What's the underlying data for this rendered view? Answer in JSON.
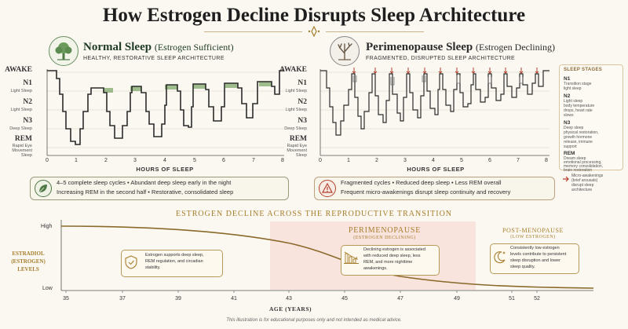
{
  "title": "How Estrogen Decline Disrupts Sleep Architecture",
  "normal": {
    "title": "Normal Sleep",
    "subtitle": "(Estrogen Sufficient)",
    "tagline": "HEALTHY, RESTORATIVE SLEEP ARCHITECTURE",
    "icon": "tree-icon",
    "summary_line1": "4–5 complete sleep cycles  •  Abundant deep sleep early in the night",
    "summary_line2": "Increasing REM in the second half  •  Restorative, consolidated sleep",
    "summary_icon": "leaf-icon"
  },
  "peri": {
    "title": "Perimenopause Sleep",
    "subtitle": "(Estrogen Declining)",
    "tagline": "FRAGMENTED, DISRUPTED SLEEP ARCHITECTURE",
    "icon": "bare-tree-icon",
    "summary_line1": "Fragmented cycles  •  Reduced deep sleep  •  Less REM overall",
    "summary_line2": "Frequent micro-awakenings disrupt sleep continuity and recovery",
    "summary_icon": "warning-icon"
  },
  "stages": {
    "awake": "AWAKE",
    "n1": "N1",
    "n1_sub": "Light Sleep",
    "n2": "N2",
    "n2_sub": "Light Sleep",
    "n3": "N3",
    "n3_sub": "Deep Sleep",
    "rem": "REM",
    "rem_sub1": "Rapid Eye",
    "rem_sub2": "Movement Sleep"
  },
  "hours_axis": {
    "label": "HOURS OF SLEEP",
    "ticks": [
      "0",
      "1",
      "2",
      "3",
      "4",
      "5",
      "6",
      "7",
      "8"
    ]
  },
  "legend": {
    "heading": "SLEEP STAGES",
    "items": [
      {
        "name": "N1",
        "desc": [
          "Transition stage",
          "light sleep"
        ]
      },
      {
        "name": "N2",
        "desc": [
          "Light sleep",
          "body temperature",
          "drops, heart rate",
          "slows"
        ]
      },
      {
        "name": "N3",
        "desc": [
          "Deep sleep",
          "physical restoration,",
          "growth hormone",
          "release, immune",
          "support"
        ]
      },
      {
        "name": "REM",
        "desc": [
          "Dream sleep",
          "emotional processing,",
          "memory consolidation,",
          "brain restoration"
        ]
      }
    ],
    "micro": [
      "Micro-awakenings",
      "(brief arousals)",
      "disrupt sleep",
      "architecture"
    ]
  },
  "transition": {
    "heading": "ESTROGEN DECLINE ACROSS THE REPRODUCTIVE TRANSITION",
    "ylabel1": "ESTRADIOL",
    "ylabel2": "(ESTROGEN)",
    "ylabel3": "LEVELS",
    "high": "High",
    "low": "Low",
    "xlabel": "AGE (YEARS)",
    "x_ticks": [
      "35",
      "37",
      "39",
      "41",
      "43",
      "45",
      "47",
      "49",
      "51",
      "52"
    ],
    "peri_title": "PERIMENOPAUSE",
    "peri_sub": "(ESTROGEN DECLINING)",
    "post_title": "POST-MENOPAUSE",
    "post_sub": "(LOW ESTROGEN)",
    "callouts": [
      {
        "icon": "shield-check-icon",
        "lines": [
          "Estrogen supports deep sleep,",
          "REM regulation, and circadian",
          "stability."
        ]
      },
      {
        "icon": "declining-bars-icon",
        "lines": [
          "Declining estrogen is associated",
          "with reduced deep sleep, less",
          "REM, and more nighttime",
          "awakenings."
        ]
      },
      {
        "icon": "moon-stars-icon",
        "lines": [
          "Consistently low estrogen",
          "levels contribute to persistent",
          "sleep disruption and lower",
          "sleep quality."
        ]
      }
    ]
  },
  "footer": "This illustration is for educational purposes only and not intended as medical advice.",
  "colors": {
    "accent": "#a67d2c",
    "green": "#4f7a46",
    "line": "#2b2b2b",
    "peri_band": "#f8dcd6",
    "curve": "#8a6a2a",
    "arrow": "#b3412f"
  }
}
